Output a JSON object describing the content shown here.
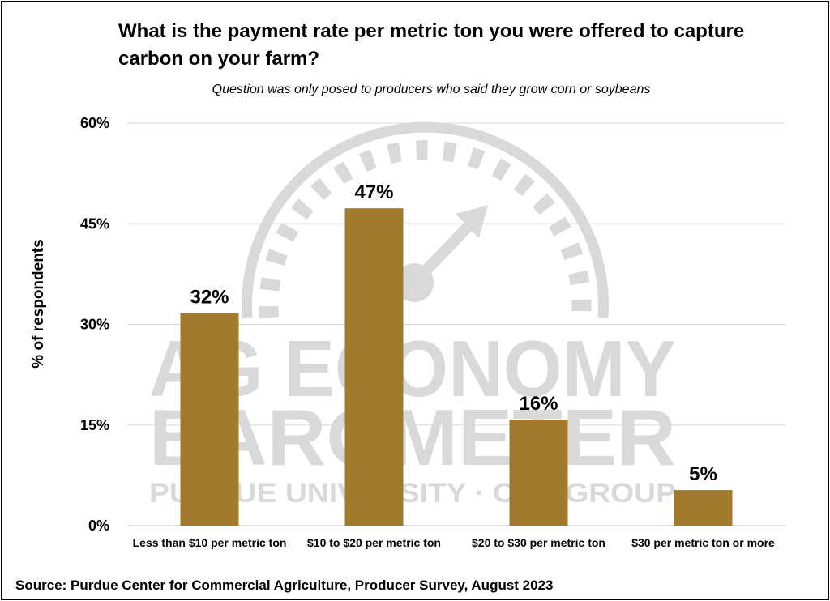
{
  "chart_data": {
    "type": "bar",
    "title_lines": [
      "What is the payment rate per metric ton you were offered to capture",
      "carbon on your farm?"
    ],
    "subtitle": "Question was only posed to producers who said they grow corn or soybeans",
    "ylabel": "% of respondents",
    "xlabel": "",
    "categories": [
      "Less than $10 per metric ton",
      "$10 to $20 per metric ton",
      "$20 to $30 per metric ton",
      "$30 per metric ton or more"
    ],
    "values": [
      32,
      47,
      16,
      5
    ],
    "plotted_values": [
      31.7,
      47.3,
      15.8,
      5.3
    ],
    "value_labels": [
      "32%",
      "47%",
      "16%",
      "5%"
    ],
    "ylim": [
      0,
      60
    ],
    "yticks": [
      0,
      15,
      30,
      45,
      60
    ],
    "ytick_labels": [
      "0%",
      "15%",
      "30%",
      "45%",
      "60%"
    ],
    "grid": true,
    "bar_color": "#A27A2E",
    "grid_color": "#d9d9d9",
    "source": "Source: Purdue Center for Commercial Agriculture, Producer Survey, August 2023"
  },
  "watermark": {
    "line1": "AG ECONOMY",
    "line2": "BAROMETER",
    "line3": "PURDUE UNIVERSITY · CAE GROUP",
    "color": "#d9d9d9",
    "icon": "gauge-icon"
  }
}
